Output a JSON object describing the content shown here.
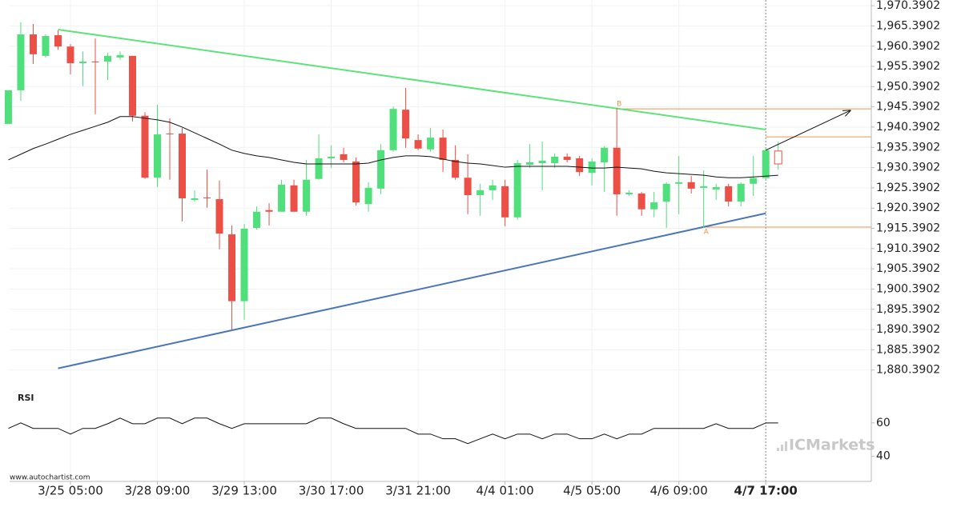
{
  "chart_data": {
    "type": "candlestick",
    "categories": [
      null,
      null,
      null,
      null,
      null,
      "3/25 05:00",
      null,
      null,
      null,
      null,
      null,
      null,
      "3/28 09:00",
      null,
      null,
      null,
      null,
      null,
      null,
      "3/29 13:00",
      null,
      null,
      null,
      null,
      null,
      null,
      "3/30 17:00",
      null,
      null,
      null,
      null,
      null,
      null,
      "3/31 21:00",
      null,
      null,
      null,
      null,
      null,
      null,
      "4/4 01:00",
      null,
      null,
      null,
      null,
      null,
      null,
      "4/5 05:00",
      null,
      null,
      null,
      null,
      null,
      null,
      "4/6 09:00",
      null,
      null,
      null,
      null,
      null,
      null,
      "4/7 17:00",
      null
    ],
    "open": [
      1941.2,
      1949.5,
      1963.3,
      1958.0,
      1963.1,
      1960.3,
      1956.2,
      1956.6,
      1956.6,
      1957.6,
      1958.0,
      1943.2,
      1927.9,
      1938.8,
      1938.8,
      1922.4,
      1923.0,
      1922.6,
      1913.9,
      1897.4,
      1915.5,
      1919.9,
      1919.5,
      1926.0,
      1919.5,
      1927.6,
      1932.7,
      1933.7,
      1931.9,
      1921.4,
      1925.2,
      1934.7,
      1944.7,
      1937.2,
      1934.9,
      1937.8,
      1932.3,
      1927.9,
      1923.6,
      1924.8,
      1925.8,
      1918.1,
      1931.1,
      1931.5,
      1931.5,
      1933.1,
      1932.7,
      1929.1,
      1931.7,
      1935.3,
      1923.8,
      1924.0,
      1920.1,
      1922.0,
      1926.4,
      1926.8,
      1925.4,
      1925.0,
      1925.8,
      1922.0,
      1926.4,
      1927.8,
      1931.3
    ],
    "high": [
      1949.5,
      1966.3,
      1965.9,
      1963.3,
      1964.3,
      1960.9,
      1959.1,
      1962.3,
      1958.8,
      1959.1,
      1958.0,
      1944.1,
      1945.9,
      1942.6,
      1940.2,
      1924.8,
      1929.9,
      1927.2,
      1916.1,
      1916.5,
      1920.8,
      1921.6,
      1927.4,
      1927.4,
      1932.3,
      1938.6,
      1935.9,
      1935.3,
      1932.9,
      1926.8,
      1936.2,
      1945.5,
      1950.1,
      1938.6,
      1940.2,
      1939.8,
      1935.9,
      1933.7,
      1926.4,
      1927.4,
      1927.4,
      1932.3,
      1936.2,
      1936.8,
      1933.9,
      1933.9,
      1933.3,
      1932.7,
      1935.7,
      1945.1,
      1924.8,
      1924.4,
      1924.4,
      1926.8,
      1933.3,
      1928.3,
      1929.7,
      1926.4,
      1926.4,
      1926.8,
      1933.3,
      1935.3,
      1936.8
    ],
    "low": [
      1941.2,
      1946.9,
      1956.0,
      1957.6,
      1959.5,
      1953.4,
      1950.5,
      1943.6,
      1952.0,
      1957.0,
      1941.8,
      1927.6,
      1925.6,
      1927.4,
      1917.1,
      1922.0,
      1920.5,
      1910.2,
      1890.3,
      1892.8,
      1915.1,
      1916.1,
      1919.5,
      1919.5,
      1918.5,
      1927.4,
      1930.3,
      1931.7,
      1921.0,
      1919.5,
      1923.8,
      1934.3,
      1935.3,
      1934.7,
      1934.3,
      1929.3,
      1927.4,
      1918.9,
      1918.5,
      1922.4,
      1915.9,
      1917.5,
      1930.3,
      1924.8,
      1930.3,
      1931.7,
      1928.3,
      1926.0,
      1924.4,
      1918.5,
      1923.4,
      1918.5,
      1918.1,
      1915.5,
      1918.9,
      1924.0,
      1915.5,
      1922.4,
      1920.8,
      1920.8,
      1923.4,
      1927.4,
      1929.9
    ],
    "close": [
      1949.5,
      1963.3,
      1958.4,
      1962.9,
      1960.3,
      1956.2,
      1956.6,
      1956.4,
      1958.0,
      1958.2,
      1943.2,
      1927.9,
      1938.6,
      1938.6,
      1922.8,
      1922.8,
      1922.8,
      1914.1,
      1897.4,
      1915.3,
      1919.5,
      1919.5,
      1926.2,
      1919.5,
      1927.4,
      1932.7,
      1933.1,
      1932.3,
      1921.8,
      1925.4,
      1934.7,
      1944.9,
      1937.6,
      1935.1,
      1937.8,
      1932.3,
      1927.9,
      1923.6,
      1924.8,
      1926.0,
      1918.1,
      1931.5,
      1931.7,
      1932.1,
      1933.1,
      1932.3,
      1929.3,
      1931.9,
      1935.3,
      1923.8,
      1924.2,
      1920.1,
      1921.8,
      1926.4,
      1926.8,
      1925.2,
      1925.8,
      1925.6,
      1922.0,
      1926.4,
      1927.8,
      1934.7,
      1934.5
    ],
    "up_color": "#4fe07c",
    "down_color": "#ec4f45",
    "xlim": [
      0.1,
      69.5
    ],
    "ylim": [
      1875.0,
      1971.8
    ],
    "yticks": [
      {
        "value": 1970.3902,
        "label": "1,970.3902"
      },
      {
        "value": 1965.3902,
        "label": "1,965.3902"
      },
      {
        "value": 1960.3902,
        "label": "1,960.3902"
      },
      {
        "value": 1955.3902,
        "label": "1,955.3902"
      },
      {
        "value": 1950.3902,
        "label": "1,950.3902"
      },
      {
        "value": 1945.3902,
        "label": "1,945.3902"
      },
      {
        "value": 1940.3902,
        "label": "1,940.3902"
      },
      {
        "value": 1935.3902,
        "label": "1,935.3902"
      },
      {
        "value": 1930.3902,
        "label": "1,930.3902"
      },
      {
        "value": 1925.3902,
        "label": "1,925.3902"
      },
      {
        "value": 1920.3902,
        "label": "1,920.3902"
      },
      {
        "value": 1915.3902,
        "label": "1,915.3902"
      },
      {
        "value": 1910.3902,
        "label": "1,910.3902"
      },
      {
        "value": 1905.3902,
        "label": "1,905.3902"
      },
      {
        "value": 1900.3902,
        "label": "1,900.3902"
      },
      {
        "value": 1895.3902,
        "label": "1,895.3902"
      },
      {
        "value": 1890.3902,
        "label": "1,890.3902"
      },
      {
        "value": 1885.3902,
        "label": "1,885.3902"
      },
      {
        "value": 1880.3902,
        "label": "1,880.3902"
      }
    ],
    "grid": true,
    "moving_average": {
      "color": "#111111",
      "values": [
        1932.3,
        1933.7,
        1935.1,
        1936.2,
        1937.4,
        1938.6,
        1939.6,
        1940.6,
        1941.6,
        1943.0,
        1943.0,
        1942.6,
        1942.2,
        1941.6,
        1940.4,
        1939.0,
        1937.6,
        1936.2,
        1934.7,
        1933.9,
        1933.3,
        1932.9,
        1932.3,
        1931.7,
        1931.3,
        1931.3,
        1931.3,
        1931.3,
        1931.3,
        1931.5,
        1932.3,
        1932.9,
        1933.3,
        1933.3,
        1933.1,
        1932.5,
        1931.9,
        1931.5,
        1931.3,
        1930.9,
        1930.5,
        1930.7,
        1930.7,
        1930.7,
        1930.7,
        1930.7,
        1930.5,
        1930.3,
        1930.3,
        1930.5,
        1930.3,
        1930.1,
        1929.5,
        1929.1,
        1928.9,
        1928.7,
        1928.5,
        1928.1,
        1927.9,
        1927.9,
        1928.1,
        1928.3,
        1928.5
      ]
    },
    "trendlines": [
      {
        "color": "#5ee37a",
        "x": [
          4,
          61
        ],
        "y": [
          1964.5,
          1939.8
        ]
      },
      {
        "color": "#4a76b8",
        "x": [
          4,
          61
        ],
        "y": [
          1880.8,
          1919.1
        ]
      }
    ],
    "levels": [
      {
        "label": "B",
        "value": 1944.9,
        "x_start": 49,
        "color": "#f0944a"
      },
      {
        "label": "A",
        "value": 1915.7,
        "x_start": 56,
        "color": "#f0944a"
      },
      {
        "value": 1938.0,
        "x_start": 61,
        "color": "#f0944a"
      }
    ],
    "projection": {
      "color": "#111111",
      "x": [
        61,
        67.8
      ],
      "y": [
        1934.7,
        1944.5
      ]
    },
    "rsi": {
      "title": "RSI",
      "color": "#111111",
      "ylim": [
        25,
        80
      ],
      "yticks": [
        60,
        40
      ],
      "values": [
        56.7,
        60,
        56.7,
        56.7,
        56.7,
        53.3,
        56.7,
        56.7,
        59.5,
        62.9,
        59.5,
        59.5,
        62.9,
        62.9,
        59.5,
        62.9,
        62.9,
        59.5,
        56.7,
        59.5,
        59.5,
        59.5,
        59.5,
        59.5,
        59.5,
        62.9,
        62.9,
        59.5,
        56.7,
        56.7,
        56.7,
        56.7,
        56.7,
        53.3,
        53.3,
        50.5,
        50.5,
        47.6,
        50.5,
        53.3,
        50.5,
        53.3,
        53.3,
        50.5,
        53.3,
        53.3,
        50.5,
        50.5,
        53.3,
        50.5,
        53.3,
        53.3,
        56.7,
        56.7,
        56.7,
        56.7,
        56.7,
        59.5,
        56.7,
        56.7,
        56.7,
        60,
        60
      ]
    },
    "watermark": "ICMarkets",
    "source": "www.autochartist.com"
  }
}
